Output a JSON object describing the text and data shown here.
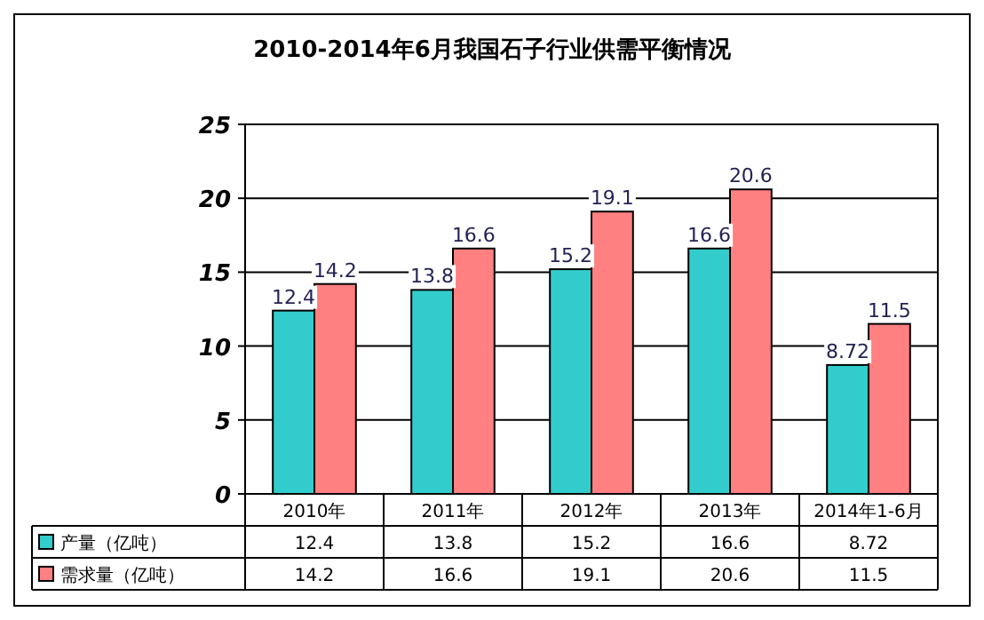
{
  "chart_data": {
    "type": "bar",
    "title": "2010-2014年6月我国石子行业供需平衡情况",
    "categories": [
      "2010年",
      "2011年",
      "2012年",
      "2013年",
      "2014年1-6月"
    ],
    "series": [
      {
        "name": "产量（亿吨）",
        "color": "#33cccc",
        "values": [
          12.4,
          13.8,
          15.2,
          16.6,
          8.72
        ]
      },
      {
        "name": "需求量（亿吨）",
        "color": "#ff8080",
        "values": [
          14.2,
          16.6,
          19.1,
          20.6,
          11.5
        ]
      }
    ],
    "annotations": [
      {
        "text": "12.4",
        "x": "2010年",
        "y": 12.4
      },
      {
        "text": "13.8",
        "x": "2011年",
        "y": 13.8
      },
      {
        "text": "15.2",
        "x": "2012年",
        "y": 15.2
      },
      {
        "text": "16.6",
        "x": "2013年",
        "y": 16.6
      },
      {
        "text": "8.72",
        "x": "2014年1-6月",
        "y": 8.72
      },
      {
        "text": "14.2",
        "x": "2010年",
        "y": 14.2
      },
      {
        "text": "16.6",
        "x": "2011年",
        "y": 16.6
      },
      {
        "text": "19.1",
        "x": "2012年",
        "y": 19.1
      },
      {
        "text": "20.6",
        "x": "2013年",
        "y": 20.6
      },
      {
        "text": "11.5",
        "x": "2014年1-6月",
        "y": 11.5
      }
    ],
    "ylim": [
      0,
      25
    ],
    "yticks": [
      0,
      5,
      10,
      15,
      20,
      25
    ],
    "grid": "y",
    "data_labels": true,
    "legend": "bottom"
  }
}
